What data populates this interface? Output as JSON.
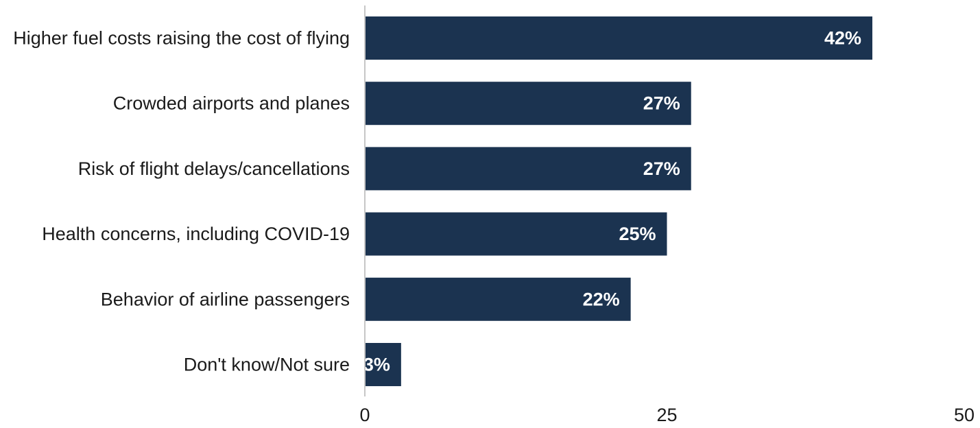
{
  "chart_data": {
    "type": "bar",
    "orientation": "horizontal",
    "categories": [
      "Higher fuel costs raising the cost of flying",
      "Crowded airports and planes",
      "Risk of flight delays/cancellations",
      "Health concerns, including COVID-19",
      "Behavior of airline passengers",
      "Don't know/Not sure"
    ],
    "values": [
      42,
      27,
      27,
      25,
      22,
      3
    ],
    "value_labels": [
      "42%",
      "27%",
      "27%",
      "25%",
      "22%",
      "3%"
    ],
    "xlim": [
      0,
      50
    ],
    "x_ticks": [
      0,
      25,
      50
    ],
    "x_tick_labels": [
      "0",
      "25",
      "50"
    ],
    "grid": false,
    "bar_color": "#1b3350",
    "value_label_color": "#ffffff",
    "axis_color": "#b3b3b3"
  }
}
